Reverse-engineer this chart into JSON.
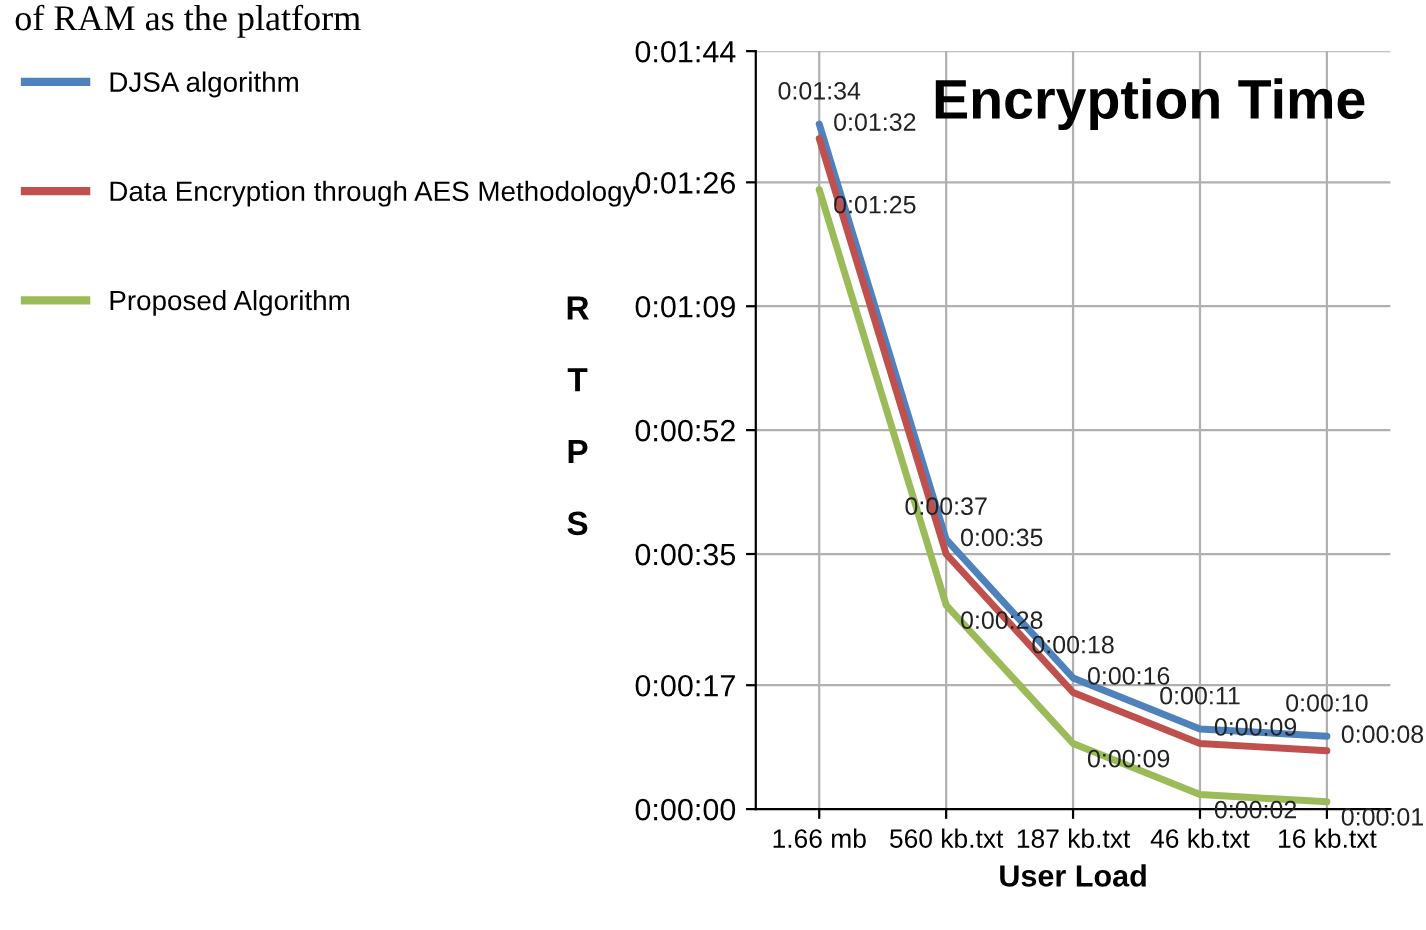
{
  "chart_data": {
    "type": "line",
    "title": "Encryption Time",
    "xlabel": "User Load",
    "ylabel": "RTPS",
    "annotations": [
      "of RAM as the platform"
    ],
    "categories": [
      "1.66 mb",
      "560 kb.txt",
      "187 kb.txt",
      "46 kb.txt",
      "16 kb.txt"
    ],
    "series": [
      {
        "name": "DJSA algorithm",
        "color": "#4f81bd",
        "values": [
          94,
          37,
          18,
          11,
          10
        ],
        "value_labels": [
          "0:01:34",
          "0:00:37",
          "0:00:18",
          "0:00:11",
          "0:00:10"
        ]
      },
      {
        "name": "Data Encryption through AES Methodology",
        "color": "#c0504d",
        "values": [
          92,
          35,
          16,
          9,
          8
        ],
        "value_labels": [
          "0:01:32",
          "0:00:35",
          "0:00:16",
          "0:00:09",
          "0:00:08"
        ]
      },
      {
        "name": "Proposed Algorithm",
        "color": "#9bbb59",
        "values": [
          85,
          28,
          9,
          2,
          1
        ],
        "value_labels": [
          "0:01:25",
          "0:00:28",
          "0:00:09",
          "0:00:02",
          "0:00:01"
        ]
      }
    ],
    "ylim": [
      0,
      104
    ],
    "yticks": [
      {
        "value": 0,
        "label": "0:00:00"
      },
      {
        "value": 17,
        "label": "0:00:17"
      },
      {
        "value": 35,
        "label": "0:00:35"
      },
      {
        "value": 52,
        "label": "0:00:52"
      },
      {
        "value": 69,
        "label": "0:01:09"
      },
      {
        "value": 86,
        "label": "0:01:26"
      },
      {
        "value": 104,
        "label": "0:01:44"
      }
    ],
    "grid": true,
    "legend": "left",
    "marker": "none",
    "line_style": "solid"
  }
}
